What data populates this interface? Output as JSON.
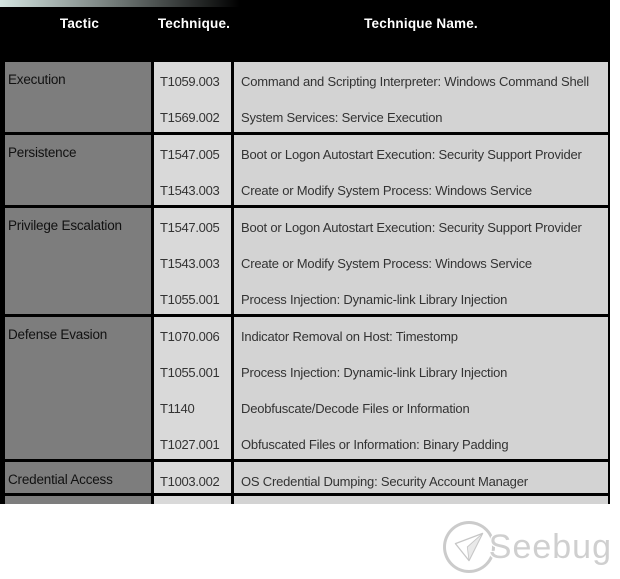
{
  "table": {
    "columns": [
      {
        "key": "tactic",
        "label": "Tactic"
      },
      {
        "key": "technique",
        "label": "Technique."
      },
      {
        "key": "technique_name",
        "label": "Technique Name."
      }
    ],
    "rows": [
      {
        "tactic": "Execution",
        "techniques": [
          {
            "id": "T1059.003",
            "name": "Command and Scripting Interpreter: Windows Command Shell"
          },
          {
            "id": "T1569.002",
            "name": "System Services: Service Execution"
          }
        ]
      },
      {
        "tactic": "Persistence",
        "techniques": [
          {
            "id": "T1547.005",
            "name": "Boot or Logon Autostart Execution: Security Support Provider"
          },
          {
            "id": "T1543.003",
            "name": "Create or Modify System Process: Windows Service"
          }
        ]
      },
      {
        "tactic": "Privilege Escalation",
        "techniques": [
          {
            "id": "T1547.005",
            "name": "Boot or Logon Autostart Execution: Security Support Provider"
          },
          {
            "id": "T1543.003",
            "name": "Create or Modify System Process: Windows Service"
          },
          {
            "id": "T1055.001",
            "name": "Process Injection: Dynamic-link Library Injection"
          }
        ]
      },
      {
        "tactic": "Defense Evasion",
        "techniques": [
          {
            "id": "T1070.006",
            "name": "Indicator Removal on Host: Timestomp"
          },
          {
            "id": "T1055.001",
            "name": "Process Injection: Dynamic-link Library Injection"
          },
          {
            "id": "T1140",
            "name": "Deobfuscate/Decode Files or Information"
          },
          {
            "id": "T1027.001",
            "name": "Obfuscated Files or Information: Binary Padding"
          }
        ]
      },
      {
        "tactic": "Credential Access",
        "clipped": true,
        "techniques": [
          {
            "id": "T1003.002",
            "name": "OS Credential Dumping: Security Account Manager"
          }
        ]
      }
    ]
  },
  "watermark": {
    "text": "Seebug",
    "icon": "paper-plane-icon"
  },
  "colors": {
    "header_bg": "#000000",
    "header_text": "#ffffff",
    "tactic_cell_bg": "#7d7d7d",
    "technique_cell_bg": "#d9d9d9",
    "name_cell_bg": "#d3d3d3",
    "border": "#000000",
    "cell_text": "#333333",
    "watermark_text": "#c7c7c7",
    "top_accent": "#dff0ec"
  }
}
